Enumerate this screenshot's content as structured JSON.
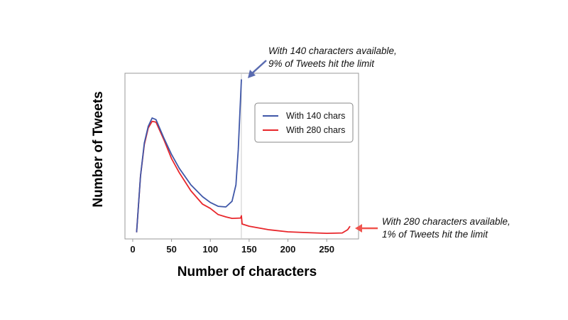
{
  "chart_data": {
    "type": "line",
    "title": "",
    "xlabel": "Number of characters",
    "ylabel": "Number of Tweets",
    "xlim": [
      -10,
      291
    ],
    "ylim": [
      0,
      100
    ],
    "y_ticks_shown": false,
    "x_ticks": [
      0,
      50,
      100,
      150,
      200,
      250
    ],
    "grid": false,
    "legend_placement": "top-right",
    "reference_line_x": 140,
    "series": [
      {
        "name": "With 140 chars",
        "color": "#3f57a8",
        "x": [
          5,
          10,
          15,
          20,
          25,
          30,
          40,
          50,
          60,
          75,
          90,
          100,
          110,
          120,
          128,
          133,
          136,
          138,
          140
        ],
        "y": [
          4,
          38,
          58,
          68,
          73,
          72,
          61,
          51,
          42.6,
          32.6,
          25.5,
          22,
          19.7,
          19.3,
          22.7,
          32.6,
          54,
          75.5,
          96.3
        ]
      },
      {
        "name": "With 280 chars",
        "color": "#e8262b",
        "x": [
          5,
          10,
          15,
          20,
          25,
          30,
          40,
          50,
          60,
          75,
          90,
          100,
          110,
          120,
          128,
          139,
          140,
          141,
          150,
          175,
          200,
          225,
          250,
          270,
          277,
          280
        ],
        "y": [
          4,
          38,
          57,
          67,
          71,
          70.5,
          60,
          48.5,
          40,
          29,
          21,
          18.4,
          14.7,
          13.3,
          12.4,
          12.6,
          14,
          9,
          7.7,
          5.6,
          4.3,
          3.8,
          3.4,
          3.6,
          5.6,
          7.7
        ]
      }
    ],
    "annotations": [
      {
        "lines": [
          "With 140 characters available,",
          "9% of Tweets hit the limit"
        ],
        "color": "#5a6bb0",
        "points_to_x": 140
      },
      {
        "lines": [
          "With 280 characters available,",
          "1% of Tweets hit the limit"
        ],
        "color": "#f0554f",
        "points_to_x": 280
      }
    ]
  }
}
